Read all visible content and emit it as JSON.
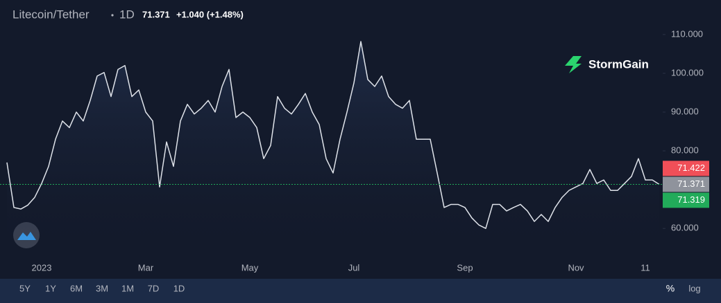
{
  "header": {
    "symbol": "Litecoin/Tether",
    "interval": "1D",
    "last": 71.371,
    "change": "+1.040 (+1.48%)"
  },
  "logo": "StormGain",
  "chart_data": {
    "type": "line",
    "color": "#dfe3ea",
    "grid": false,
    "categories": [
      null,
      null,
      null,
      null,
      null,
      "2023",
      null,
      null,
      null,
      null,
      null,
      null,
      null,
      null,
      null,
      null,
      null,
      null,
      null,
      null,
      "Mar",
      null,
      null,
      null,
      null,
      null,
      null,
      null,
      null,
      null,
      null,
      null,
      null,
      null,
      null,
      "May",
      null,
      null,
      null,
      null,
      null,
      null,
      null,
      null,
      null,
      null,
      null,
      null,
      null,
      null,
      "Jul",
      null,
      null,
      null,
      null,
      null,
      null,
      null,
      null,
      null,
      null,
      null,
      null,
      null,
      null,
      null,
      "Sep",
      null,
      null,
      null,
      null,
      null,
      null,
      null,
      null,
      null,
      null,
      null,
      null,
      null,
      null,
      null,
      "Nov",
      null,
      null,
      null,
      null,
      null,
      null,
      null,
      null,
      null,
      "11",
      null,
      null
    ],
    "values": [
      77,
      65.4,
      65,
      66,
      68,
      71.6,
      76,
      83,
      87.7,
      86,
      90,
      87.7,
      93,
      99.3,
      100.2,
      94,
      101,
      102,
      94,
      95.7,
      90,
      87.7,
      70.7,
      82.3,
      76,
      87.7,
      92,
      89.5,
      91,
      93,
      90,
      96.6,
      101,
      88.6,
      90,
      88.6,
      86,
      78,
      81.4,
      94,
      91,
      89.5,
      92,
      94.8,
      90,
      86.8,
      78,
      74.3,
      83,
      90,
      97.5,
      108.2,
      98.4,
      96.6,
      99.3,
      94,
      92,
      91,
      93,
      83,
      83,
      83,
      74.3,
      65.4,
      66.2,
      66.2,
      65.4,
      62.7,
      60.9,
      60,
      66.2,
      66.2,
      64.5,
      65.4,
      66.2,
      64.5,
      61.8,
      63.6,
      61.8,
      65.4,
      68,
      69.8,
      70.7,
      71.6,
      75.2,
      71.6,
      72.5,
      69.8,
      69.8,
      71.6,
      73.4,
      78,
      72.5,
      72.5,
      71.371
    ],
    "ylim": [
      52.9,
      118.9
    ],
    "yticks": [
      {
        "value": 60,
        "label": "60.000"
      },
      {
        "value": 80,
        "label": "80.000"
      },
      {
        "value": 90,
        "label": "90.000"
      },
      {
        "value": 100,
        "label": "100.000"
      },
      {
        "value": 110,
        "label": "110.000"
      }
    ],
    "price_markers": [
      {
        "value": 71.422,
        "color": "#f04f58"
      },
      {
        "value": 71.371,
        "color": "#8f939c"
      },
      {
        "value": 71.319,
        "color": "#22ab5a"
      }
    ]
  },
  "toolbar": {
    "ranges": [
      "5Y",
      "1Y",
      "6M",
      "3M",
      "1M",
      "7D",
      "1D"
    ],
    "percent": "%",
    "log": "log"
  }
}
